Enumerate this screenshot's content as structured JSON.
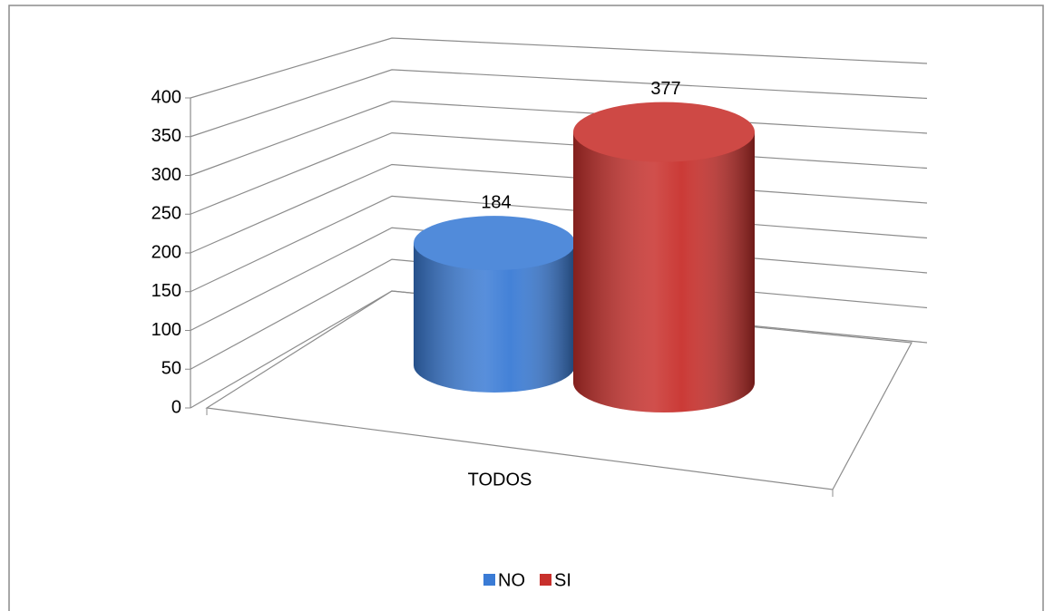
{
  "chart_data": {
    "type": "bar3d",
    "categories": [
      "TODOS"
    ],
    "series": [
      {
        "name": "NO",
        "color": "#3a7bd5",
        "values": [
          184
        ]
      },
      {
        "name": "SI",
        "color": "#c8302c",
        "values": [
          377
        ]
      }
    ],
    "ylim": [
      0,
      400
    ],
    "yticks": [
      0,
      50,
      100,
      150,
      200,
      250,
      300,
      350,
      400
    ],
    "grid": true,
    "legend": "bottom"
  }
}
